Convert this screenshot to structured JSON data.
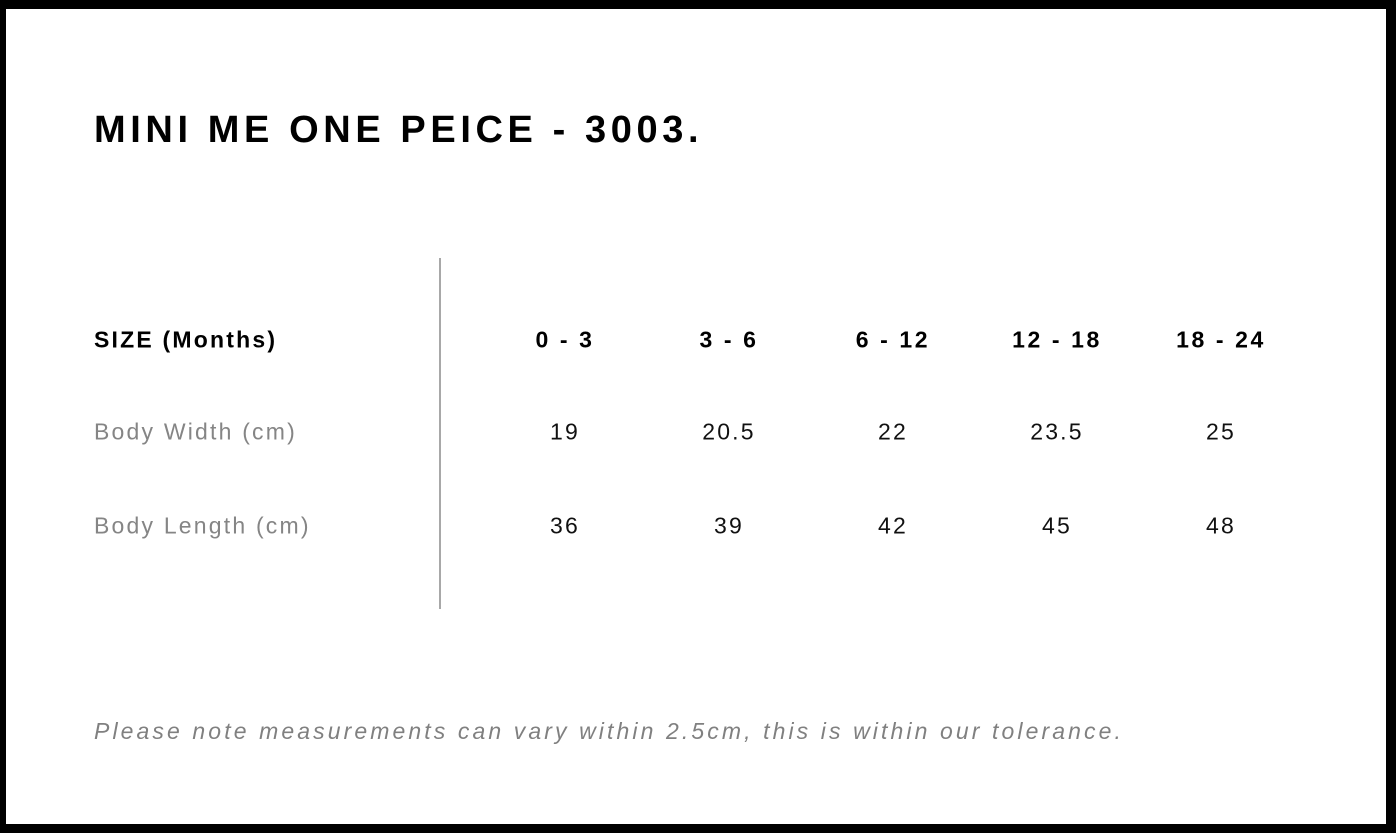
{
  "title": "MINI ME ONE PEICE - 3003.",
  "table": {
    "header_label": "SIZE (Months)",
    "sizes": [
      "0 - 3",
      "3 - 6",
      "6 - 12",
      "12 - 18",
      "18 - 24"
    ],
    "rows": [
      {
        "label": "Body Width (cm)",
        "values": [
          "19",
          "20.5",
          "22",
          "23.5",
          "25"
        ]
      },
      {
        "label": "Body Length (cm)",
        "values": [
          "36",
          "39",
          "42",
          "45",
          "48"
        ]
      }
    ]
  },
  "note": "Please note measurements can vary within 2.5cm, this is within our tolerance.",
  "colors": {
    "frame": "#000000",
    "label_gray": "#858585",
    "divider": "#a8a8a8"
  }
}
